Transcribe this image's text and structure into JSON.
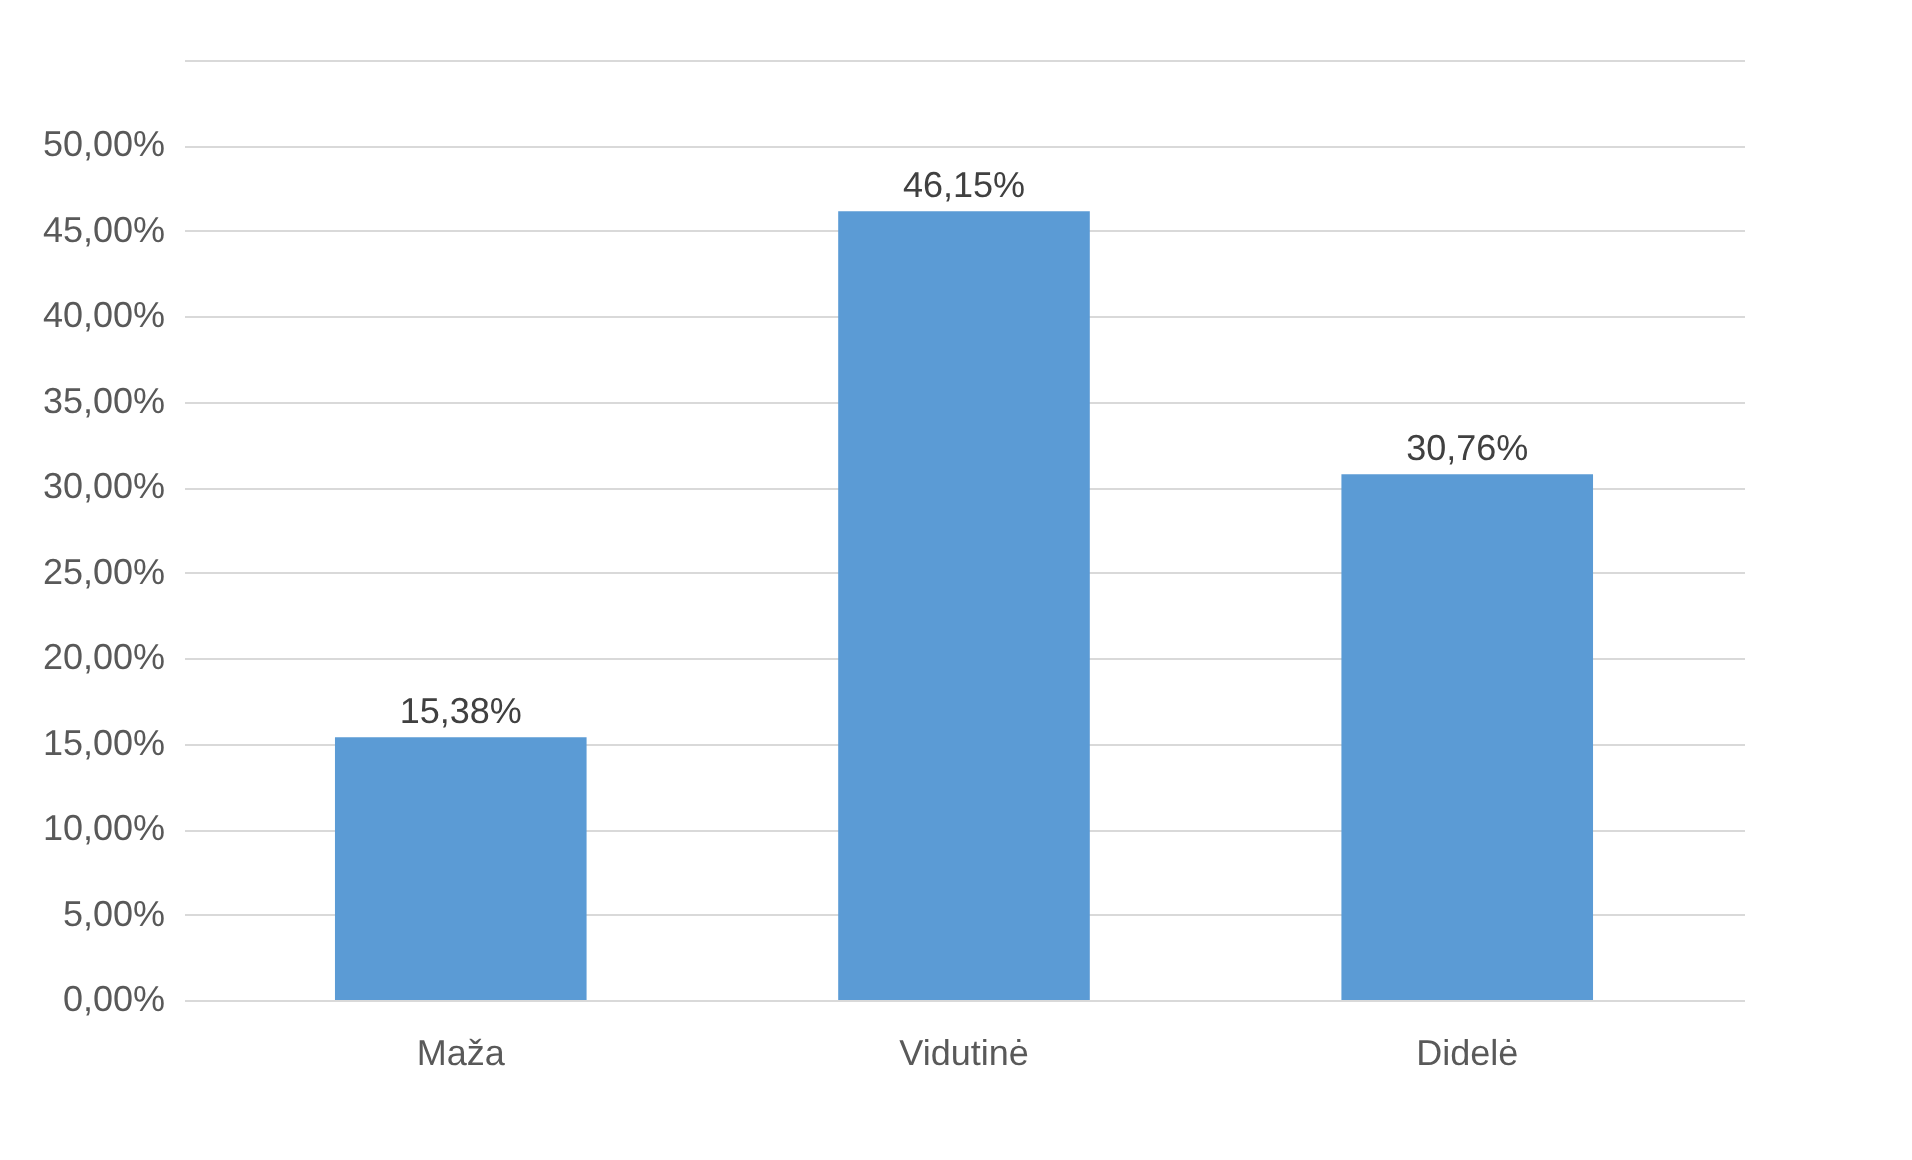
{
  "chart_data": {
    "type": "bar",
    "categories": [
      "Maža",
      "Vidutinė",
      "Didelė"
    ],
    "values": [
      15.38,
      46.15,
      30.76
    ],
    "color": "#5b9bd5",
    "value_labels": [
      "15,38%",
      "46,15%",
      "30,76%"
    ],
    "ylim": [
      0,
      55
    ],
    "yticks": [
      {
        "value": 0,
        "label": "0,00%"
      },
      {
        "value": 5,
        "label": "5,00%"
      },
      {
        "value": 10,
        "label": "10,00%"
      },
      {
        "value": 15,
        "label": "15,00%"
      },
      {
        "value": 20,
        "label": "20,00%"
      },
      {
        "value": 25,
        "label": "25,00%"
      },
      {
        "value": 30,
        "label": "30,00%"
      },
      {
        "value": 35,
        "label": "35,00%"
      },
      {
        "value": 40,
        "label": "40,00%"
      },
      {
        "value": 45,
        "label": "45,00%"
      },
      {
        "value": 50,
        "label": "50,00%"
      },
      {
        "value": 55,
        "label": null
      }
    ],
    "grid": true
  }
}
